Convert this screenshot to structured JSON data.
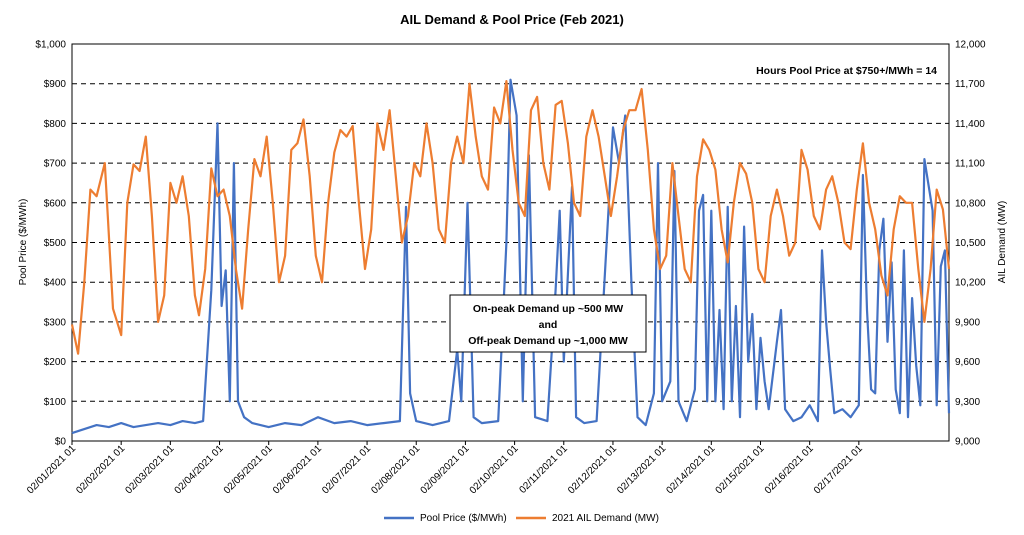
{
  "chart_data": {
    "type": "line",
    "title": "AIL Demand & Pool Price (Feb 2021)",
    "ylabel_left": "Pool Price ($/MWh)",
    "ylabel_right": "AIL Demand (MW)",
    "ylim_left": [
      0,
      1000
    ],
    "ylim_right": [
      9000,
      12000
    ],
    "left_ticks": [
      "$0",
      "$100",
      "$200",
      "$300",
      "$400",
      "$500",
      "$600",
      "$700",
      "$800",
      "$900",
      "$1,000"
    ],
    "right_ticks": [
      "9,000",
      "9,300",
      "9,600",
      "9,900",
      "10,200",
      "10,500",
      "10,800",
      "11,100",
      "11,400",
      "11,700",
      "12,000"
    ],
    "x_ticks": [
      "02/01/2021 01",
      "02/02/2021 01",
      "02/03/2021 01",
      "02/04/2021 01",
      "02/05/2021 01",
      "02/06/2021 01",
      "02/07/2021 01",
      "02/08/2021 01",
      "02/09/2021 01",
      "02/10/2021 01",
      "02/11/2021 01",
      "02/12/2021 01",
      "02/13/2021 01",
      "02/14/2021 01",
      "02/15/2021 01",
      "02/16/2021 01",
      "02/17/2021 01"
    ],
    "grid": "horizontal dashed",
    "legend_position": "bottom",
    "x_unit": "hours from 02/01/2021 01",
    "series": [
      {
        "name": "Pool Price ($/MWh)",
        "axis": "left",
        "color": "#4472C4",
        "points": [
          [
            0,
            20
          ],
          [
            6,
            30
          ],
          [
            12,
            40
          ],
          [
            18,
            35
          ],
          [
            24,
            45
          ],
          [
            30,
            35
          ],
          [
            36,
            40
          ],
          [
            42,
            45
          ],
          [
            48,
            40
          ],
          [
            54,
            50
          ],
          [
            60,
            45
          ],
          [
            64,
            50
          ],
          [
            68,
            380
          ],
          [
            71,
            800
          ],
          [
            73,
            340
          ],
          [
            75,
            430
          ],
          [
            77,
            100
          ],
          [
            79,
            700
          ],
          [
            81,
            100
          ],
          [
            84,
            60
          ],
          [
            88,
            45
          ],
          [
            96,
            35
          ],
          [
            104,
            45
          ],
          [
            112,
            40
          ],
          [
            120,
            60
          ],
          [
            128,
            45
          ],
          [
            136,
            50
          ],
          [
            144,
            40
          ],
          [
            152,
            45
          ],
          [
            160,
            50
          ],
          [
            163,
            590
          ],
          [
            165,
            120
          ],
          [
            168,
            50
          ],
          [
            176,
            40
          ],
          [
            184,
            50
          ],
          [
            188,
            230
          ],
          [
            190,
            100
          ],
          [
            193,
            600
          ],
          [
            196,
            60
          ],
          [
            200,
            45
          ],
          [
            208,
            50
          ],
          [
            212,
            500
          ],
          [
            214,
            910
          ],
          [
            217,
            820
          ],
          [
            220,
            100
          ],
          [
            223,
            720
          ],
          [
            226,
            60
          ],
          [
            232,
            50
          ],
          [
            236,
            380
          ],
          [
            238,
            580
          ],
          [
            240,
            200
          ],
          [
            242,
            420
          ],
          [
            244,
            640
          ],
          [
            246,
            60
          ],
          [
            250,
            45
          ],
          [
            256,
            50
          ],
          [
            262,
            600
          ],
          [
            264,
            790
          ],
          [
            267,
            700
          ],
          [
            270,
            820
          ],
          [
            273,
            400
          ],
          [
            276,
            60
          ],
          [
            280,
            40
          ],
          [
            284,
            120
          ],
          [
            286,
            700
          ],
          [
            288,
            100
          ],
          [
            292,
            150
          ],
          [
            294,
            680
          ],
          [
            296,
            100
          ],
          [
            300,
            50
          ],
          [
            304,
            130
          ],
          [
            306,
            580
          ],
          [
            308,
            620
          ],
          [
            310,
            100
          ],
          [
            312,
            580
          ],
          [
            314,
            100
          ],
          [
            316,
            330
          ],
          [
            318,
            80
          ],
          [
            320,
            590
          ],
          [
            322,
            100
          ],
          [
            324,
            340
          ],
          [
            326,
            60
          ],
          [
            328,
            540
          ],
          [
            330,
            200
          ],
          [
            332,
            320
          ],
          [
            334,
            80
          ],
          [
            336,
            260
          ],
          [
            338,
            150
          ],
          [
            340,
            80
          ],
          [
            344,
            250
          ],
          [
            346,
            330
          ],
          [
            348,
            80
          ],
          [
            352,
            50
          ],
          [
            356,
            60
          ],
          [
            360,
            90
          ],
          [
            364,
            50
          ],
          [
            366,
            480
          ],
          [
            368,
            300
          ],
          [
            370,
            180
          ],
          [
            372,
            70
          ],
          [
            376,
            80
          ],
          [
            380,
            60
          ],
          [
            384,
            90
          ],
          [
            386,
            670
          ],
          [
            388,
            330
          ],
          [
            390,
            130
          ],
          [
            392,
            120
          ],
          [
            394,
            480
          ],
          [
            396,
            560
          ],
          [
            398,
            250
          ],
          [
            400,
            450
          ],
          [
            402,
            130
          ],
          [
            404,
            70
          ],
          [
            406,
            480
          ],
          [
            408,
            60
          ],
          [
            410,
            360
          ],
          [
            412,
            190
          ],
          [
            414,
            90
          ],
          [
            416,
            710
          ],
          [
            420,
            580
          ],
          [
            422,
            90
          ],
          [
            424,
            440
          ],
          [
            426,
            480
          ],
          [
            428,
            70
          ]
        ]
      },
      {
        "name": "2021 AIL Demand (MW)",
        "axis": "right",
        "color": "#ED7D31",
        "points": [
          [
            0,
            9880
          ],
          [
            3,
            9660
          ],
          [
            6,
            10200
          ],
          [
            9,
            10900
          ],
          [
            12,
            10850
          ],
          [
            16,
            11100
          ],
          [
            20,
            10000
          ],
          [
            24,
            9800
          ],
          [
            27,
            10800
          ],
          [
            30,
            11090
          ],
          [
            33,
            11040
          ],
          [
            36,
            11300
          ],
          [
            39,
            10700
          ],
          [
            42,
            9900
          ],
          [
            45,
            10100
          ],
          [
            48,
            10950
          ],
          [
            51,
            10800
          ],
          [
            54,
            11000
          ],
          [
            57,
            10700
          ],
          [
            60,
            10100
          ],
          [
            62,
            9950
          ],
          [
            65,
            10300
          ],
          [
            68,
            11060
          ],
          [
            71,
            10850
          ],
          [
            74,
            10900
          ],
          [
            77,
            10700
          ],
          [
            80,
            10300
          ],
          [
            83,
            10000
          ],
          [
            86,
            10600
          ],
          [
            89,
            11130
          ],
          [
            92,
            11000
          ],
          [
            95,
            11300
          ],
          [
            98,
            10800
          ],
          [
            101,
            10200
          ],
          [
            104,
            10400
          ],
          [
            107,
            11200
          ],
          [
            110,
            11250
          ],
          [
            113,
            11430
          ],
          [
            116,
            11000
          ],
          [
            119,
            10400
          ],
          [
            122,
            10200
          ],
          [
            125,
            10800
          ],
          [
            128,
            11180
          ],
          [
            131,
            11350
          ],
          [
            134,
            11300
          ],
          [
            137,
            11380
          ],
          [
            140,
            10800
          ],
          [
            143,
            10300
          ],
          [
            146,
            10600
          ],
          [
            149,
            11400
          ],
          [
            152,
            11200
          ],
          [
            155,
            11500
          ],
          [
            158,
            11000
          ],
          [
            161,
            10500
          ],
          [
            164,
            10700
          ],
          [
            167,
            11100
          ],
          [
            170,
            11000
          ],
          [
            173,
            11400
          ],
          [
            176,
            11100
          ],
          [
            179,
            10600
          ],
          [
            182,
            10500
          ],
          [
            185,
            11100
          ],
          [
            188,
            11300
          ],
          [
            191,
            11100
          ],
          [
            194,
            11700
          ],
          [
            197,
            11300
          ],
          [
            200,
            11000
          ],
          [
            203,
            10900
          ],
          [
            206,
            11520
          ],
          [
            209,
            11400
          ],
          [
            212,
            11720
          ],
          [
            215,
            11200
          ],
          [
            218,
            10800
          ],
          [
            221,
            10700
          ],
          [
            224,
            11500
          ],
          [
            227,
            11600
          ],
          [
            230,
            11100
          ],
          [
            233,
            10900
          ],
          [
            236,
            11540
          ],
          [
            239,
            11570
          ],
          [
            242,
            11250
          ],
          [
            245,
            10800
          ],
          [
            248,
            10700
          ],
          [
            251,
            11300
          ],
          [
            254,
            11500
          ],
          [
            257,
            11300
          ],
          [
            260,
            11000
          ],
          [
            263,
            10700
          ],
          [
            266,
            11000
          ],
          [
            269,
            11350
          ],
          [
            272,
            11500
          ],
          [
            275,
            11500
          ],
          [
            278,
            11660
          ],
          [
            281,
            11200
          ],
          [
            284,
            10600
          ],
          [
            287,
            10300
          ],
          [
            290,
            10400
          ],
          [
            293,
            11100
          ],
          [
            296,
            10700
          ],
          [
            299,
            10300
          ],
          [
            302,
            10200
          ],
          [
            305,
            11000
          ],
          [
            308,
            11280
          ],
          [
            311,
            11200
          ],
          [
            314,
            11050
          ],
          [
            317,
            10600
          ],
          [
            320,
            10350
          ],
          [
            323,
            10800
          ],
          [
            326,
            11100
          ],
          [
            329,
            11020
          ],
          [
            332,
            10800
          ],
          [
            335,
            10300
          ],
          [
            338,
            10200
          ],
          [
            341,
            10700
          ],
          [
            344,
            10900
          ],
          [
            347,
            10700
          ],
          [
            350,
            10400
          ],
          [
            353,
            10500
          ],
          [
            356,
            11200
          ],
          [
            359,
            11050
          ],
          [
            362,
            10700
          ],
          [
            365,
            10600
          ],
          [
            368,
            10900
          ],
          [
            371,
            11000
          ],
          [
            374,
            10800
          ],
          [
            377,
            10500
          ],
          [
            380,
            10450
          ],
          [
            383,
            10900
          ],
          [
            386,
            11250
          ],
          [
            389,
            10800
          ],
          [
            392,
            10600
          ],
          [
            395,
            10250
          ],
          [
            398,
            10100
          ],
          [
            401,
            10600
          ],
          [
            404,
            10850
          ],
          [
            407,
            10800
          ],
          [
            410,
            10800
          ],
          [
            413,
            10300
          ],
          [
            416,
            9900
          ],
          [
            419,
            10300
          ],
          [
            422,
            10900
          ],
          [
            425,
            10750
          ],
          [
            428,
            10300
          ]
        ]
      }
    ],
    "annotations": {
      "hours_note": "Hours Pool Price at $750+/MWh  =  14",
      "box_line1": "On-peak Demand up ~500 MW",
      "box_line2": "and",
      "box_line3": "Off-peak Demand up ~1,000 MW"
    }
  }
}
